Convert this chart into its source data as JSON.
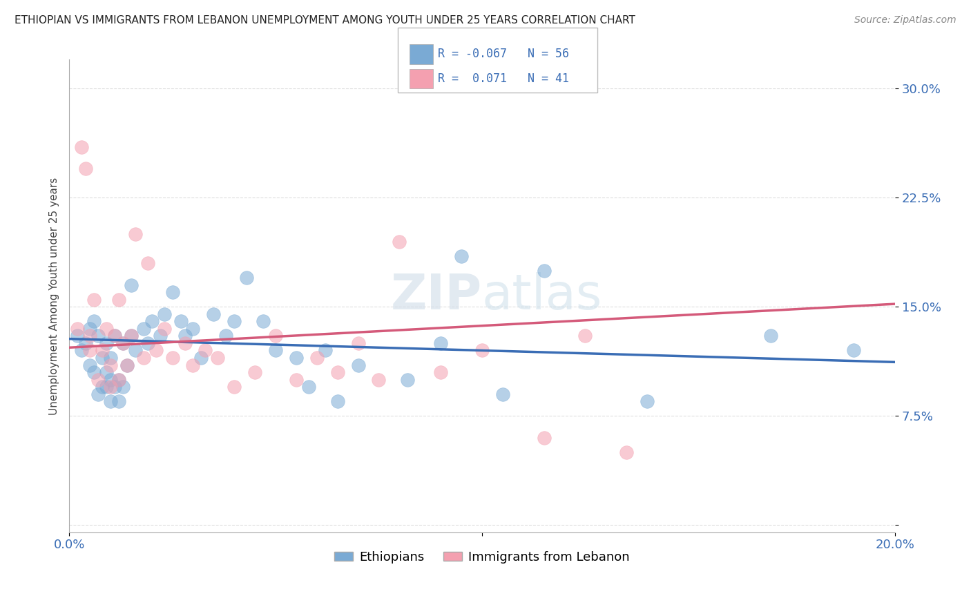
{
  "title": "ETHIOPIAN VS IMMIGRANTS FROM LEBANON UNEMPLOYMENT AMONG YOUTH UNDER 25 YEARS CORRELATION CHART",
  "source": "Source: ZipAtlas.com",
  "ylabel": "Unemployment Among Youth under 25 years",
  "xlim": [
    0.0,
    0.2
  ],
  "ylim": [
    -0.005,
    0.32
  ],
  "yticks": [
    0.0,
    0.075,
    0.15,
    0.225,
    0.3
  ],
  "ytick_labels": [
    "",
    "7.5%",
    "15.0%",
    "22.5%",
    "30.0%"
  ],
  "blue_R": -0.067,
  "blue_N": 56,
  "pink_R": 0.071,
  "pink_N": 41,
  "blue_color": "#7aaad4",
  "pink_color": "#f4a0b0",
  "blue_line_color": "#3a6db5",
  "pink_line_color": "#d45a7a",
  "legend_label_blue": "Ethiopians",
  "legend_label_pink": "Immigrants from Lebanon",
  "ethiopian_x": [
    0.002,
    0.003,
    0.004,
    0.005,
    0.005,
    0.006,
    0.006,
    0.007,
    0.007,
    0.008,
    0.008,
    0.009,
    0.009,
    0.009,
    0.01,
    0.01,
    0.01,
    0.011,
    0.011,
    0.012,
    0.012,
    0.013,
    0.013,
    0.014,
    0.015,
    0.015,
    0.016,
    0.018,
    0.019,
    0.02,
    0.022,
    0.023,
    0.025,
    0.027,
    0.028,
    0.03,
    0.032,
    0.035,
    0.038,
    0.04,
    0.043,
    0.047,
    0.05,
    0.055,
    0.058,
    0.062,
    0.065,
    0.07,
    0.082,
    0.09,
    0.095,
    0.105,
    0.115,
    0.14,
    0.17,
    0.19
  ],
  "ethiopian_y": [
    0.13,
    0.12,
    0.125,
    0.135,
    0.11,
    0.14,
    0.105,
    0.13,
    0.09,
    0.115,
    0.095,
    0.125,
    0.095,
    0.105,
    0.1,
    0.115,
    0.085,
    0.13,
    0.095,
    0.1,
    0.085,
    0.125,
    0.095,
    0.11,
    0.165,
    0.13,
    0.12,
    0.135,
    0.125,
    0.14,
    0.13,
    0.145,
    0.16,
    0.14,
    0.13,
    0.135,
    0.115,
    0.145,
    0.13,
    0.14,
    0.17,
    0.14,
    0.12,
    0.115,
    0.095,
    0.12,
    0.085,
    0.11,
    0.1,
    0.125,
    0.185,
    0.09,
    0.175,
    0.085,
    0.13,
    0.12
  ],
  "lebanon_x": [
    0.002,
    0.003,
    0.004,
    0.005,
    0.005,
    0.006,
    0.007,
    0.008,
    0.009,
    0.01,
    0.01,
    0.011,
    0.012,
    0.012,
    0.013,
    0.014,
    0.015,
    0.016,
    0.018,
    0.019,
    0.021,
    0.023,
    0.025,
    0.028,
    0.03,
    0.033,
    0.036,
    0.04,
    0.045,
    0.05,
    0.055,
    0.06,
    0.065,
    0.07,
    0.075,
    0.08,
    0.09,
    0.1,
    0.115,
    0.125,
    0.135
  ],
  "lebanon_y": [
    0.135,
    0.26,
    0.245,
    0.13,
    0.12,
    0.155,
    0.1,
    0.12,
    0.135,
    0.11,
    0.095,
    0.13,
    0.155,
    0.1,
    0.125,
    0.11,
    0.13,
    0.2,
    0.115,
    0.18,
    0.12,
    0.135,
    0.115,
    0.125,
    0.11,
    0.12,
    0.115,
    0.095,
    0.105,
    0.13,
    0.1,
    0.115,
    0.105,
    0.125,
    0.1,
    0.195,
    0.105,
    0.12,
    0.06,
    0.13,
    0.05
  ],
  "blue_intercept": 0.128,
  "blue_slope": -0.08,
  "pink_intercept": 0.122,
  "pink_slope": 0.15
}
